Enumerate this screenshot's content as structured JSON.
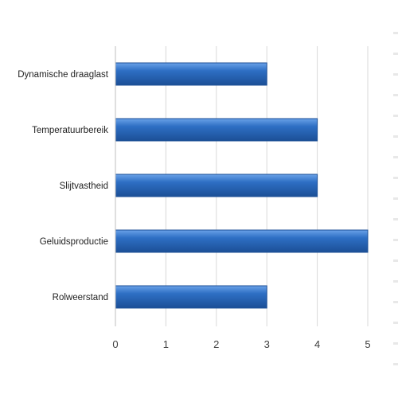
{
  "chart_data": {
    "type": "bar",
    "orientation": "horizontal",
    "categories": [
      "Dynamische draaglast",
      "Temperatuurbereik",
      "Slijtvastheid",
      "Geluidsproductie",
      "Rolweerstand"
    ],
    "values": [
      3,
      4,
      4,
      5,
      3
    ],
    "xlim": [
      0,
      5
    ],
    "xticks": [
      "0",
      "1",
      "2",
      "3",
      "4",
      "5"
    ],
    "grid": true,
    "legend": "none",
    "bar_color": "#2e6fc4",
    "bar_color_light": "#6aa2e8",
    "bar_color_dark": "#1c4f96",
    "title": "",
    "xlabel": "",
    "ylabel": ""
  }
}
